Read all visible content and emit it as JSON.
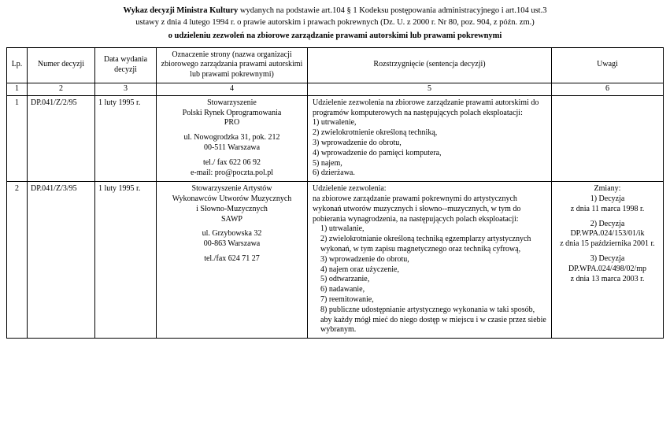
{
  "title": {
    "line1_prefix_strong": "Wykaz decyzji Ministra Kultury",
    "line1_rest": " wydanych na podstawie art.104 § 1 Kodeksu postępowania administracyjnego i art.104 ust.3",
    "line2": "ustawy z dnia 4 lutego 1994 r. o prawie autorskim i prawach pokrewnych (Dz. U. z 2000 r. Nr 80, poz. 904, z późn. zm.)",
    "line3": "o udzieleniu zezwoleń na zbiorowe zarządzanie prawami autorskimi lub prawami pokrewnymi"
  },
  "columns": {
    "lp": "Lp.",
    "numer": "Numer decyzji",
    "data": "Data wydania decyzji",
    "org": "Oznaczenie strony (nazwa organizacji zbiorowego zarządzania prawami autorskimi lub prawami pokrewnymi)",
    "roz": "Rozstrzygnięcie (sentencja decyzji)",
    "uwagi": "Uwagi"
  },
  "numrow": {
    "c1": "1",
    "c2": "2",
    "c3": "3",
    "c4": "4",
    "c5": "5",
    "c6": "6"
  },
  "rows": [
    {
      "lp": "1",
      "numer": "DP.041/Z/2/95",
      "data": "1 luty 1995 r.",
      "org": {
        "l1": "Stowarzyszenie",
        "l2": "Polski Rynek Oprogramowania",
        "l3": "PRO",
        "l4": "ul. Nowogrodzka 31, pok. 212",
        "l5": "00-511 Warszawa",
        "l6": "tel./ fax  622 06 92",
        "l7": "e-mail:  pro@poczta.pol.pl"
      },
      "roz": {
        "intro": "Udzielenie zezwolenia na zbiorowe zarządzanie prawami autorskimi do programów komputerowych na następujących polach eksploatacji:",
        "p1": "1) utrwalenie,",
        "p2": "2) zwielokrotnienie określoną techniką,",
        "p3": "3) wprowadzenie do obrotu,",
        "p4": "4) wprowadzenie do pamięci komputera,",
        "p5": "5) najem,",
        "p6": "6) dzierżawa."
      },
      "uwagi": ""
    },
    {
      "lp": "2",
      "numer": "DP.041/Z/3/95",
      "data": "1 luty 1995 r.",
      "org": {
        "l1": "Stowarzyszenie Artystów",
        "l2": "Wykonawców Utworów Muzycznych",
        "l3": "i  Słowno-Muzycznych",
        "l4": "SAWP",
        "l5": "ul. Grzybowska 32",
        "l6": "00-863 Warszawa",
        "l7": "tel./fax  624 71 27"
      },
      "roz": {
        "intro1": "Udzielenie zezwolenia:",
        "intro2": "na zbiorowe zarządzanie prawami pokrewnymi do artystycznych wykonań utworów muzycznych i słowno--muzycznych, w tym do pobierania wynagrodzenia, na  następujących polach eksploatacji:",
        "p1": "1) utrwalanie,",
        "p2": "2) zwielokrotnianie określoną techniką egzemplarzy artystycznych wykonań, w tym zapisu magnetycznego oraz techniką cyfrową,",
        "p3": "3) wprowadzenie do obrotu,",
        "p4": "4) najem oraz użyczenie,",
        "p5": "5) odtwarzanie,",
        "p6": "6) nadawanie,",
        "p7": "7) reemitowanie,",
        "p8": "8) publiczne udostępnianie artystycznego wykonania w taki sposób, aby każdy mógł mieć do niego dostęp w miejscu i w czasie przez siebie wybranym."
      },
      "uwagi": {
        "h": "Zmiany:",
        "d1a": "1) Decyzja",
        "d1b": "z dnia 11 marca 1998 r.",
        "d2a": "2) Decyzja",
        "d2b": "DP.WPA.024/153/01/ik",
        "d2c": "z dnia 15 października 2001 r.",
        "d3a": "3) Decyzja",
        "d3b": "DP.WPA.024/498/02/mp",
        "d3c": "z dnia 13 marca 2003 r."
      }
    }
  ]
}
